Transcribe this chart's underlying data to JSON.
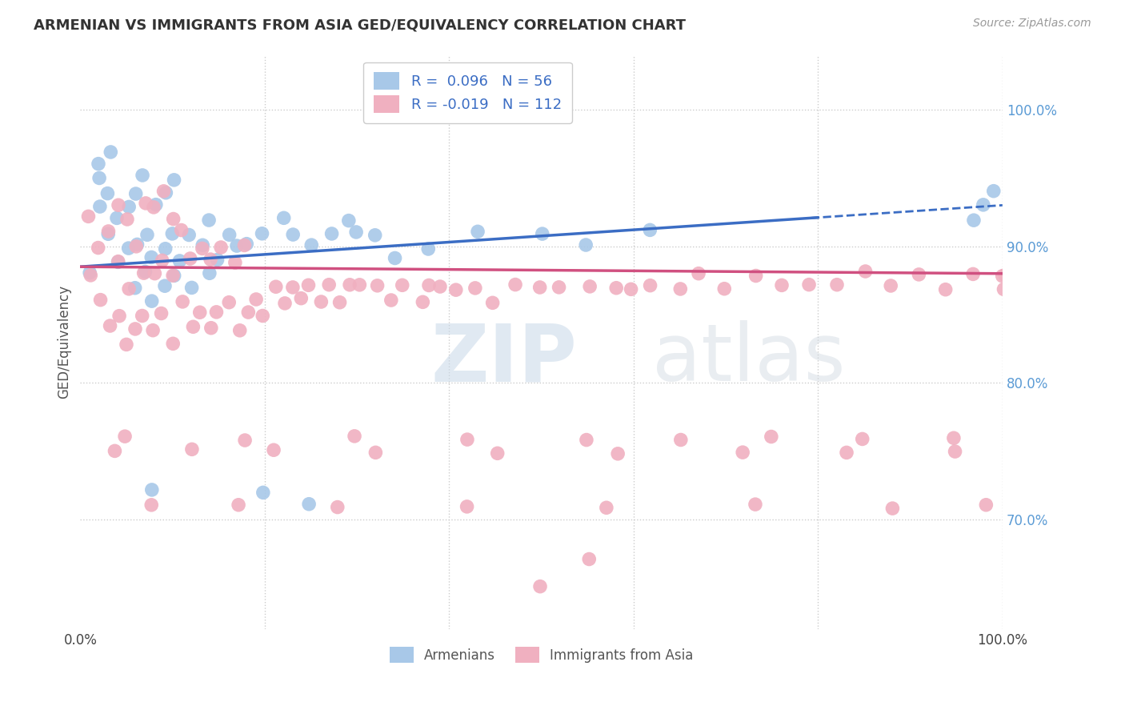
{
  "title": "ARMENIAN VS IMMIGRANTS FROM ASIA GED/EQUIVALENCY CORRELATION CHART",
  "source": "Source: ZipAtlas.com",
  "ylabel": "GED/Equivalency",
  "xlim": [
    0,
    100
  ],
  "ylim": [
    62,
    104
  ],
  "background_color": "#ffffff",
  "watermark_zip": "ZIP",
  "watermark_atlas": "atlas",
  "legend_line1": "R =  0.096   N = 56",
  "legend_line2": "R = -0.019   N = 112",
  "blue_color": "#A8C8E8",
  "pink_color": "#F0B0C0",
  "blue_line_color": "#3B6DC4",
  "pink_line_color": "#D05080",
  "right_tick_color": "#5B9BD5",
  "arm_x": [
    1,
    2,
    2,
    3,
    3,
    4,
    4,
    5,
    5,
    6,
    6,
    6,
    7,
    7,
    7,
    8,
    8,
    8,
    9,
    9,
    9,
    10,
    10,
    10,
    11,
    12,
    12,
    13,
    14,
    14,
    15,
    16,
    17,
    18,
    20,
    22,
    23,
    25,
    27,
    29,
    30,
    32,
    34,
    38,
    43,
    50,
    55,
    62,
    97,
    98,
    99,
    2,
    3,
    8,
    20,
    25
  ],
  "arm_y": [
    88,
    93,
    95,
    91,
    94,
    89,
    92,
    90,
    93,
    87,
    90,
    94,
    88,
    91,
    95,
    86,
    89,
    93,
    87,
    90,
    94,
    88,
    91,
    95,
    89,
    87,
    91,
    90,
    88,
    92,
    89,
    91,
    90,
    90,
    91,
    92,
    91,
    90,
    91,
    92,
    91,
    91,
    89,
    90,
    91,
    91,
    90,
    91,
    92,
    93,
    94,
    96,
    97,
    72,
    72,
    71
  ],
  "asia_x": [
    1,
    1,
    2,
    2,
    3,
    3,
    4,
    4,
    4,
    5,
    5,
    5,
    6,
    6,
    7,
    7,
    7,
    8,
    8,
    8,
    9,
    9,
    9,
    10,
    10,
    10,
    11,
    11,
    12,
    12,
    13,
    13,
    14,
    14,
    15,
    15,
    16,
    17,
    17,
    18,
    18,
    19,
    20,
    21,
    22,
    23,
    24,
    25,
    26,
    27,
    28,
    29,
    30,
    32,
    34,
    35,
    37,
    38,
    39,
    41,
    43,
    45,
    47,
    50,
    52,
    55,
    58,
    60,
    62,
    65,
    67,
    70,
    73,
    76,
    79,
    82,
    85,
    88,
    91,
    94,
    97,
    100,
    100,
    100,
    5,
    18,
    30,
    42,
    55,
    65,
    75,
    85,
    95,
    4,
    12,
    21,
    32,
    45,
    58,
    72,
    83,
    95,
    8,
    17,
    28,
    42,
    57,
    73,
    88,
    98,
    50,
    55
  ],
  "asia_y": [
    88,
    92,
    86,
    90,
    84,
    91,
    85,
    89,
    93,
    83,
    87,
    92,
    84,
    90,
    85,
    88,
    93,
    84,
    88,
    93,
    85,
    89,
    94,
    83,
    88,
    92,
    86,
    91,
    84,
    89,
    85,
    90,
    84,
    89,
    85,
    90,
    86,
    84,
    89,
    85,
    90,
    86,
    85,
    87,
    86,
    87,
    86,
    87,
    86,
    87,
    86,
    87,
    87,
    87,
    86,
    87,
    86,
    87,
    87,
    87,
    87,
    86,
    87,
    87,
    87,
    87,
    87,
    87,
    87,
    87,
    88,
    87,
    88,
    87,
    87,
    87,
    88,
    87,
    88,
    87,
    88,
    88,
    87,
    88,
    76,
    76,
    76,
    76,
    76,
    76,
    76,
    76,
    76,
    75,
    75,
    75,
    75,
    75,
    75,
    75,
    75,
    75,
    71,
    71,
    71,
    71,
    71,
    71,
    71,
    71,
    65,
    67
  ]
}
